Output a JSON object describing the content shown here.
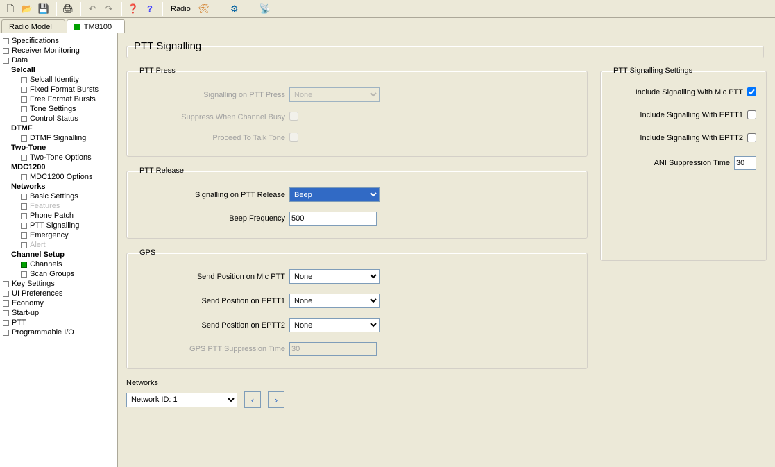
{
  "toolbar": {
    "label_radio": "Radio",
    "icons": {
      "new": "🗋",
      "open": "📂",
      "save": "💾",
      "print": "🖨",
      "undo": "↶",
      "redo": "↷",
      "help_cursor": "❓",
      "help": "?",
      "radio1": "🛠",
      "radio2": "⚙",
      "radio3": "📡"
    }
  },
  "tabs": {
    "radio_model": "Radio Model",
    "model_name": "TM8100"
  },
  "tree": [
    {
      "label": "Specifications",
      "indent": 0
    },
    {
      "label": "Receiver Monitoring",
      "indent": 0
    },
    {
      "label": "Data",
      "indent": 0
    },
    {
      "label": "Selcall",
      "indent": 1,
      "bold": true,
      "no_node": true
    },
    {
      "label": "Selcall Identity",
      "indent": 2
    },
    {
      "label": "Fixed Format Bursts",
      "indent": 2
    },
    {
      "label": "Free Format Bursts",
      "indent": 2
    },
    {
      "label": "Tone Settings",
      "indent": 2
    },
    {
      "label": "Control Status",
      "indent": 2
    },
    {
      "label": "DTMF",
      "indent": 1,
      "bold": true,
      "no_node": true
    },
    {
      "label": "DTMF Signalling",
      "indent": 2
    },
    {
      "label": "Two-Tone",
      "indent": 1,
      "bold": true,
      "no_node": true
    },
    {
      "label": "Two-Tone Options",
      "indent": 2
    },
    {
      "label": "MDC1200",
      "indent": 1,
      "bold": true,
      "no_node": true
    },
    {
      "label": "MDC1200 Options",
      "indent": 2
    },
    {
      "label": "Networks",
      "indent": 1,
      "bold": true,
      "no_node": true
    },
    {
      "label": "Basic Settings",
      "indent": 2
    },
    {
      "label": "Features",
      "indent": 2,
      "dim": true
    },
    {
      "label": "Phone Patch",
      "indent": 2
    },
    {
      "label": "PTT Signalling",
      "indent": 2
    },
    {
      "label": "Emergency",
      "indent": 2
    },
    {
      "label": "Alert",
      "indent": 2,
      "dim": true
    },
    {
      "label": "Channel Setup",
      "indent": 1,
      "bold": true,
      "no_node": true
    },
    {
      "label": "Channels",
      "indent": 2,
      "green": true
    },
    {
      "label": "Scan Groups",
      "indent": 2
    },
    {
      "label": "Key Settings",
      "indent": 0
    },
    {
      "label": "UI Preferences",
      "indent": 0
    },
    {
      "label": "Economy",
      "indent": 0
    },
    {
      "label": "Start-up",
      "indent": 0
    },
    {
      "label": "PTT",
      "indent": 0
    },
    {
      "label": "Programmable I/O",
      "indent": 0
    }
  ],
  "page": {
    "title": "PTT Signalling",
    "press": {
      "legend": "PTT Press",
      "signalling_label": "Signalling on PTT Press",
      "signalling_value": "None",
      "suppress_label": "Suppress When Channel Busy",
      "proceed_label": "Proceed To Talk Tone"
    },
    "release": {
      "legend": "PTT Release",
      "signalling_label": "Signalling on PTT Release",
      "signalling_value": "Beep",
      "beep_label": "Beep Frequency",
      "beep_value": "500"
    },
    "gps": {
      "legend": "GPS",
      "mic_label": "Send Position on Mic PTT",
      "mic_value": "None",
      "eptt1_label": "Send Position on EPTT1",
      "eptt1_value": "None",
      "eptt2_label": "Send Position on EPTT2",
      "eptt2_value": "None",
      "supp_label": "GPS PTT Suppression Time",
      "supp_value": "30"
    },
    "settings": {
      "legend": "PTT Signalling Settings",
      "mic_label": "Include Signalling With Mic PTT",
      "mic_checked": true,
      "eptt1_label": "Include Signalling With EPTT1",
      "eptt1_checked": false,
      "eptt2_label": "Include Signalling With EPTT2",
      "eptt2_checked": false,
      "ani_label": "ANI Suppression Time",
      "ani_value": "30"
    },
    "networks": {
      "label": "Networks",
      "selected": "Network ID: 1",
      "prev": "‹",
      "next": "›"
    }
  }
}
